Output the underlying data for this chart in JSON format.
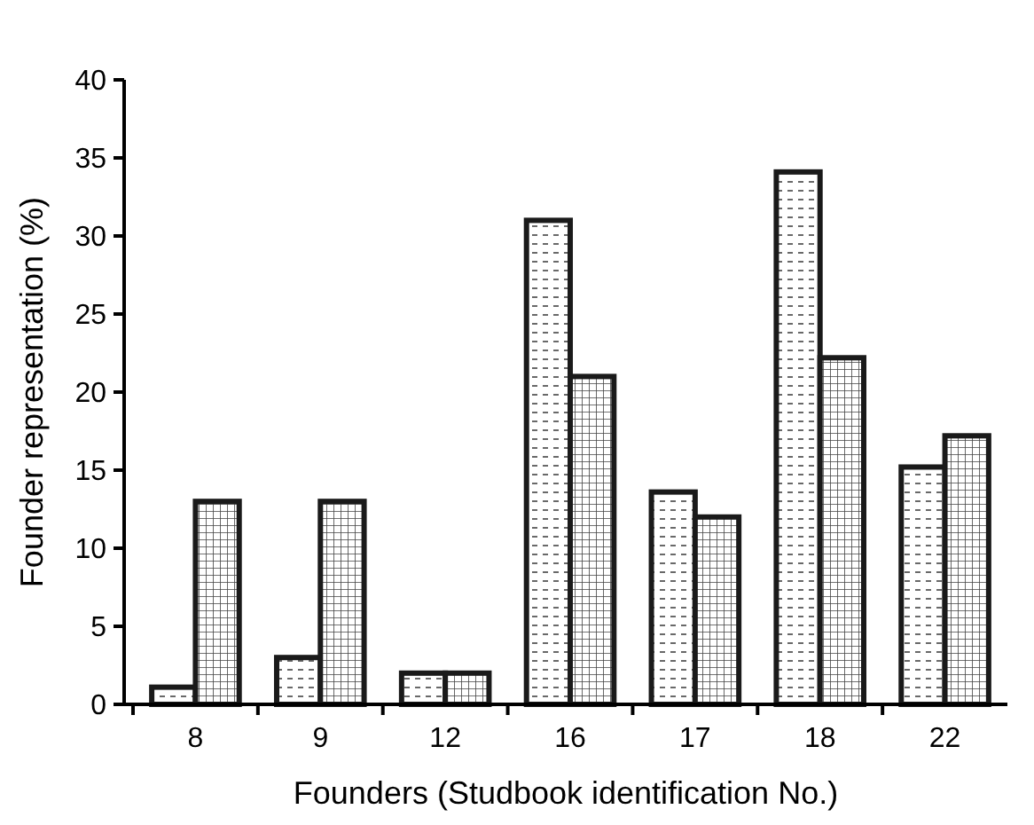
{
  "chart_data": {
    "type": "bar",
    "xlabel": "Founders (Studbook identification No.)",
    "ylabel": "Founder representation (%)",
    "categories": [
      "8",
      "9",
      "12",
      "16",
      "17",
      "18",
      "22"
    ],
    "series": [
      {
        "color": "#1a1a1a",
        "values": [
          1.1,
          3,
          2,
          31,
          13.6,
          34.1,
          15.2
        ]
      },
      {
        "color": "#1a1a1a",
        "values": [
          13,
          13,
          2,
          21,
          12,
          22.2,
          17.2
        ]
      }
    ],
    "ylim": [
      0,
      40
    ],
    "yticks": [
      0,
      5,
      10,
      15,
      20,
      25,
      30,
      35,
      40
    ],
    "grid": false
  }
}
